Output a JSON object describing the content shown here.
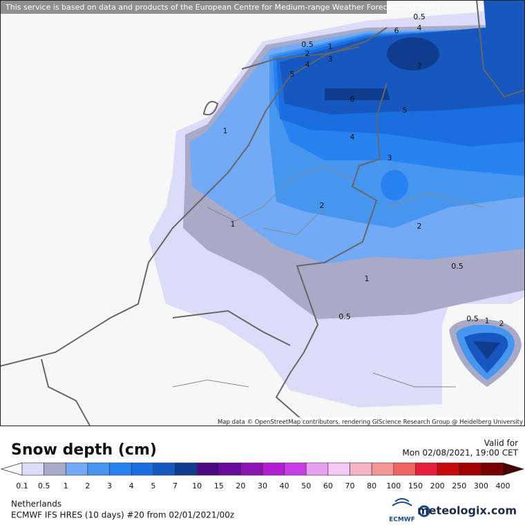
{
  "attribution_top": "This service is based on data and products of the European Centre for Medium-range Weather Forecasts (ECMWF)",
  "attribution_map": "Map data © OpenStreetMap contributors, rendering GIScience Research Group @ Heidelberg University",
  "map": {
    "contour_labels": [
      "0.5",
      "1",
      "2",
      "3",
      "4",
      "5",
      "6",
      "7",
      "5",
      "4",
      "3",
      "2",
      "2",
      "1",
      "1",
      "1",
      "0.5",
      "0.5",
      "0.5",
      "1",
      "2",
      "0.5",
      "4",
      "6"
    ]
  },
  "legend": {
    "title": "Snow depth (cm)",
    "valid_label": "Valid for",
    "valid_time": "Mon 02/08/2021, 19:00 CET",
    "levels": [
      0.1,
      0.5,
      1,
      2,
      3,
      4,
      5,
      7,
      10,
      15,
      20,
      30,
      40,
      50,
      60,
      70,
      80,
      100,
      150,
      200,
      250,
      300,
      400
    ],
    "colors": [
      "#dcdcf8",
      "#a9a9c8",
      "#73aaf5",
      "#4696f0",
      "#2882f0",
      "#1a6ee0",
      "#1658c0",
      "#0f3c8c",
      "#4b0a82",
      "#6a0a9a",
      "#8c14b4",
      "#b41ed2",
      "#c83ce6",
      "#e6a0f0",
      "#f5c8f5",
      "#f5b4c8",
      "#f59696",
      "#f06464",
      "#e61e3c",
      "#c80a0a",
      "#a00000",
      "#780000"
    ],
    "under_color": "#ffffff",
    "over_color": "#4a0000"
  },
  "footer": {
    "region": "Netherlands",
    "model": "ECMWF IFS HRES (10 days) #20 from  02/01/2021/00z",
    "logo": "ECMWF",
    "brand": "meteologix.com"
  }
}
